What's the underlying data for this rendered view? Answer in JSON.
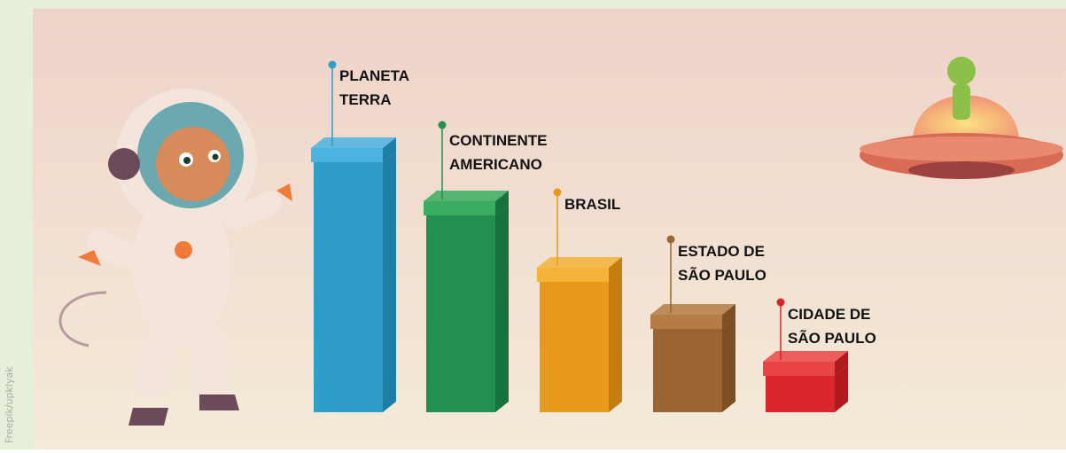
{
  "items": [
    {
      "lines": [
        "PLANETA",
        "TERRA"
      ]
    },
    {
      "lines": [
        "CONTINENTE",
        "AMERICANO"
      ]
    },
    {
      "lines": [
        "BRASIL"
      ]
    },
    {
      "lines": [
        "ESTADO DE",
        "SÃO PAULO"
      ]
    },
    {
      "lines": [
        "CIDADE DE",
        "SÃO PAULO"
      ]
    }
  ],
  "credit": "Freepik/upklyak"
}
